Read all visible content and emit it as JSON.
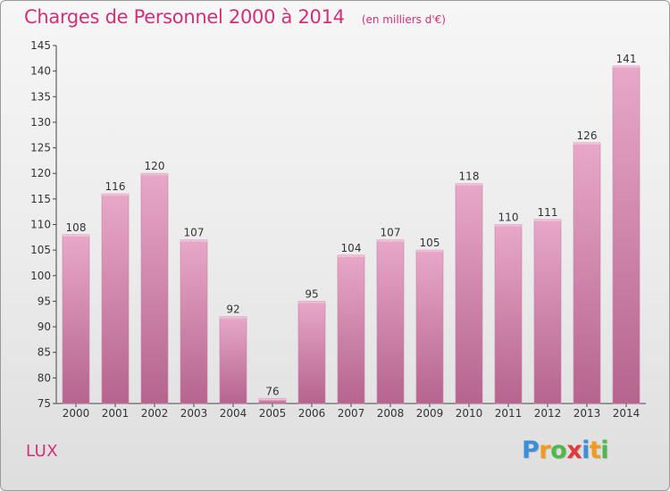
{
  "chart_data": {
    "type": "bar",
    "title": "Charges de Personnel 2000 à 2014",
    "subtitle": "(en milliers d'€)",
    "categories": [
      "2000",
      "2001",
      "2002",
      "2003",
      "2004",
      "2005",
      "2006",
      "2007",
      "2008",
      "2009",
      "2010",
      "2011",
      "2012",
      "2013",
      "2014"
    ],
    "values": [
      108,
      116,
      120,
      107,
      92,
      76,
      95,
      104,
      107,
      105,
      118,
      110,
      111,
      126,
      141
    ],
    "ylim": [
      75,
      145
    ],
    "yticks": [
      75,
      80,
      85,
      90,
      95,
      100,
      105,
      110,
      115,
      120,
      125,
      130,
      135,
      140,
      145
    ],
    "grid": false,
    "bar_color": "#d77aa8",
    "bar_color_light": "#e8a8c8",
    "bar_color_dark": "#b5648e"
  },
  "commune_label": "LUX",
  "logo": {
    "letters": [
      "P",
      "r",
      "o",
      "x",
      "i",
      "t",
      "i"
    ],
    "colors": [
      "#3a8fd8",
      "#f29a1b",
      "#4fb84a",
      "#e03a3a",
      "#3a8fd8",
      "#f29a1b",
      "#4fb84a"
    ]
  }
}
